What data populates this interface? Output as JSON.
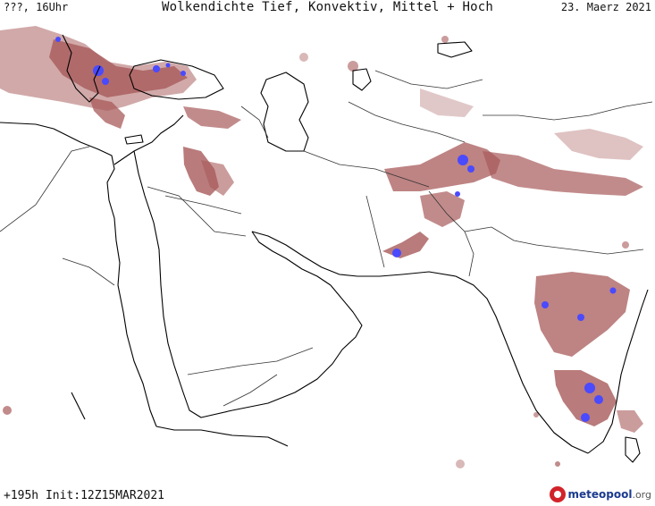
{
  "header": {
    "left": "???, 16Uhr",
    "title": "Wolkendichte  Tief, Konvektiv, Mittel + Hoch",
    "date": "23. Maerz 2021"
  },
  "footer": {
    "left": "+195h Init:12Z15MAR2021",
    "logo_brand": "meteopool",
    "logo_tld": ".org"
  },
  "colors": {
    "cloud_low": "#c99a9a",
    "cloud_mid": "#a85a5a",
    "cloud_dense": "#8b2d2d",
    "convective": "#4a4aff",
    "coastline": "#000000",
    "border": "#222222"
  }
}
